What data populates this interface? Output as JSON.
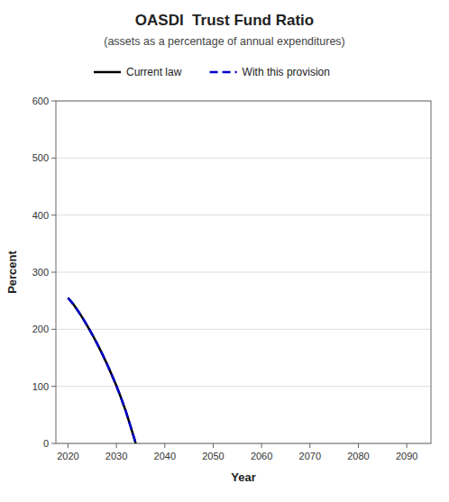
{
  "chart_data": {
    "type": "line",
    "title": "OASDI  Trust Fund Ratio",
    "subtitle": "(assets as a percentage of annual expenditures)",
    "x_label": "Year",
    "y_label": "Percent",
    "x": [
      2020,
      2021,
      2022,
      2023,
      2024,
      2025,
      2026,
      2027,
      2028,
      2029,
      2030,
      2031,
      2032,
      2033,
      2034
    ],
    "series": [
      {
        "name": "Current law",
        "color": "#000000",
        "line_style": "solid",
        "values": [
          255,
          245,
          233,
          220,
          206,
          191,
          175,
          158,
          140,
          121,
          101,
          79,
          55,
          28,
          0
        ]
      },
      {
        "name": "With this provision",
        "color": "#0000cc",
        "line_style": "dashed",
        "values": [
          255,
          245,
          233,
          220,
          206,
          191,
          175,
          158,
          140,
          121,
          101,
          79,
          55,
          28,
          0
        ]
      }
    ],
    "xlim": [
      2017.5,
      2095
    ],
    "ylim": [
      0,
      600
    ],
    "xticks": [
      2020,
      2030,
      2040,
      2050,
      2060,
      2070,
      2080,
      2090
    ],
    "yticks": [
      0,
      100,
      200,
      300,
      400,
      500,
      600
    ],
    "grid": "y",
    "legend": "top"
  }
}
